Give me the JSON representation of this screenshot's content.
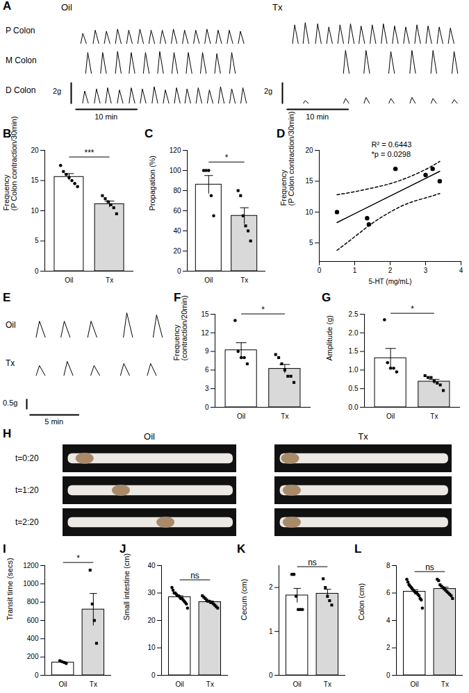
{
  "chart_data": [
    {
      "panel": "A",
      "type": "trace",
      "color": "#000000",
      "tick_labels": false,
      "rows": [
        "P Colon",
        "M Colon",
        "D Colon"
      ],
      "xlim": [
        0,
        28
      ],
      "ylim": [
        0,
        2.4
      ],
      "scale_bars": [
        {
          "axis": "y",
          "value": 2,
          "label": "2g"
        },
        {
          "axis": "x",
          "value": 10,
          "label": "10 min"
        }
      ],
      "groups": [
        {
          "name": "Oil",
          "series": [
            {
              "x": [
                1.2,
                3.2,
                5.0,
                6.8,
                8.6,
                10.4,
                12.2,
                14.0,
                15.8,
                17.6,
                19.4,
                21.2,
                23.0,
                24.8,
                26.6
              ],
              "values": [
                1.0,
                1.3,
                1.2,
                1.4,
                1.3,
                1.4,
                1.3,
                1.3,
                1.4,
                1.3,
                1.3,
                1.4,
                1.3,
                1.3,
                1.2
              ]
            },
            {
              "x": [
                2.0,
                4.4,
                6.8,
                9.0,
                11.3,
                13.6,
                15.9,
                18.2,
                20.5,
                22.8,
                25.2
              ],
              "values": [
                2.0,
                2.0,
                2.1,
                2.0,
                2.0,
                2.1,
                2.0,
                2.0,
                2.0,
                1.9,
                2.0
              ]
            },
            {
              "x": [
                1.5,
                3.4,
                5.2,
                7.1,
                9.0,
                10.8,
                12.7,
                14.5,
                16.3,
                18.0,
                19.8,
                21.6,
                23.4,
                25.2,
                27.0
              ],
              "values": [
                1.2,
                1.4,
                1.5,
                1.3,
                1.5,
                1.4,
                1.6,
                1.3,
                1.5,
                1.4,
                1.5,
                1.3,
                1.6,
                1.4,
                1.5
              ]
            }
          ]
        },
        {
          "name": "Tx",
          "series": [
            {
              "x": [
                1.3,
                3.0,
                5.0,
                6.8,
                8.6,
                10.3,
                12.0,
                13.8,
                15.6,
                17.4,
                19.2,
                21.0,
                22.8,
                24.6,
                26.4
              ],
              "values": [
                1.8,
                2.0,
                1.9,
                1.6,
                1.8,
                1.9,
                1.7,
                1.8,
                1.9,
                1.7,
                1.6,
                1.8,
                1.7,
                1.6,
                1.5
              ]
            },
            {
              "x": [
                9.5,
                12.8,
                16.8,
                20.2,
                23.6,
                27.0
              ],
              "values": [
                2.2,
                2.2,
                2.1,
                2.2,
                2.2,
                2.1
              ]
            },
            {
              "x": [
                3.0,
                9.5,
                12.8,
                16.8,
                20.2,
                23.6,
                27.0
              ],
              "values": [
                0.3,
                0.5,
                0.6,
                0.5,
                0.6,
                0.5,
                0.4
              ]
            }
          ]
        }
      ]
    },
    {
      "panel": "B",
      "type": "bar",
      "ylabel": [
        "Frequency",
        "(P Colon contraction/30min)"
      ],
      "ylim": [
        0,
        20
      ],
      "yticks": [
        0,
        5,
        10,
        15,
        20
      ],
      "significance": "***",
      "series": [
        {
          "name": "Oil",
          "color": "#ffffff",
          "marker": "circle",
          "mean": 15.6,
          "error": 0.55,
          "values": [
            17.5,
            16.5,
            16,
            15.5,
            15,
            14.5,
            14
          ]
        },
        {
          "name": "Tx",
          "color": "#d9d9d9",
          "marker": "square",
          "mean": 11.1,
          "error": 0.5,
          "values": [
            12.5,
            12,
            11.5,
            11,
            10.5,
            9.5
          ]
        }
      ]
    },
    {
      "panel": "C",
      "type": "bar",
      "ylabel": [
        "Propagation (%)"
      ],
      "ylim": [
        0,
        120
      ],
      "yticks": [
        0,
        20,
        40,
        60,
        80,
        100,
        120
      ],
      "significance": "*",
      "series": [
        {
          "name": "Oil",
          "color": "#ffffff",
          "marker": "circle",
          "mean": 86,
          "error": 9,
          "values": [
            100,
            100,
            100,
            75,
            55
          ]
        },
        {
          "name": "Tx",
          "color": "#d9d9d9",
          "marker": "square",
          "mean": 55,
          "error": 8,
          "values": [
            80,
            75,
            55,
            45,
            40,
            30
          ]
        }
      ]
    },
    {
      "panel": "D",
      "type": "scatter",
      "color": "#000000",
      "xlabel": "5-HT (mg/mL)",
      "ylabel": [
        "Frequency",
        "(P Colon contraction/30min)"
      ],
      "xlim": [
        0,
        4
      ],
      "xticks": [
        0,
        1,
        2,
        3,
        4
      ],
      "ylim": [
        2,
        20
      ],
      "yticks": [
        5,
        10,
        15,
        20
      ],
      "x": [
        0.5,
        1.35,
        1.4,
        2.15,
        3.0,
        3.2,
        3.4
      ],
      "values": [
        10,
        9,
        8,
        17,
        16,
        17,
        15
      ],
      "fit": {
        "x": [
          0.5,
          3.4
        ],
        "values": [
          8.3,
          16.6
        ]
      },
      "ci_upper": {
        "x": [
          0.5,
          1.0,
          1.5,
          2.0,
          2.5,
          3.0,
          3.4
        ],
        "values": [
          12.8,
          13.3,
          13.9,
          14.6,
          15.6,
          16.9,
          18.2
        ]
      },
      "ci_lower": {
        "x": [
          0.5,
          1.0,
          1.5,
          2.0,
          2.5,
          3.0,
          3.4
        ],
        "values": [
          3.8,
          6.0,
          8.2,
          10.0,
          11.4,
          12.3,
          13.0
        ]
      },
      "annotations": [
        "R² = 0.6443",
        "*p = 0.0298"
      ]
    },
    {
      "panel": "E",
      "type": "trace",
      "color": "#000000",
      "tick_labels": false,
      "rows": [
        "Oil",
        "Tx"
      ],
      "xlim": [
        0,
        14
      ],
      "ylim": [
        0,
        1.4
      ],
      "scale_bars": [
        {
          "axis": "y",
          "value": 0.5,
          "label": "0.5g"
        },
        {
          "axis": "x",
          "value": 5,
          "label": "5 min"
        }
      ],
      "series": [
        {
          "x": [
            1.0,
            3.5,
            6.2,
            9.8,
            12.8
          ],
          "values": [
            0.8,
            0.8,
            0.8,
            1.2,
            1.1
          ]
        },
        {
          "x": [
            1.0,
            3.8,
            6.5,
            9.5,
            12.2
          ],
          "values": [
            0.5,
            0.7,
            0.5,
            0.6,
            0.6
          ]
        }
      ]
    },
    {
      "panel": "F",
      "type": "bar",
      "ylabel": [
        "Frequency",
        "(contraction/20min)"
      ],
      "ylim": [
        0,
        15
      ],
      "yticks": [
        0,
        3,
        6,
        9,
        12,
        15
      ],
      "significance": "*",
      "series": [
        {
          "name": "Oil",
          "color": "#ffffff",
          "marker": "circle",
          "mean": 9.2,
          "error": 1.2,
          "values": [
            14,
            9,
            8,
            8,
            7
          ]
        },
        {
          "name": "Tx",
          "color": "#d9d9d9",
          "marker": "square",
          "mean": 6.2,
          "error": 0.7,
          "values": [
            8.5,
            8,
            7,
            6,
            5,
            5,
            4
          ]
        }
      ]
    },
    {
      "panel": "G",
      "type": "bar",
      "ylabel": [
        "Amplitude (g)"
      ],
      "ylim": [
        0,
        2.5
      ],
      "yticks": [
        {
          "value": 0,
          "label": "0.0"
        },
        {
          "value": 0.5,
          "label": "0.5"
        },
        {
          "value": 1,
          "label": "1.0"
        },
        {
          "value": 1.5,
          "label": "1.5"
        },
        {
          "value": 2,
          "label": "2.0"
        },
        {
          "value": 2.5,
          "label": "2.5"
        }
      ],
      "significance": "*",
      "series": [
        {
          "name": "Oil",
          "color": "#ffffff",
          "marker": "circle",
          "mean": 1.32,
          "error": 0.26,
          "values": [
            2.35,
            1.2,
            1.05,
            1.05,
            0.95
          ]
        },
        {
          "name": "Tx",
          "color": "#d9d9d9",
          "marker": "square",
          "mean": 0.69,
          "error": 0.06,
          "values": [
            0.85,
            0.8,
            0.8,
            0.7,
            0.65,
            0.6,
            0.45
          ]
        }
      ]
    },
    {
      "panel": "H",
      "type": "image",
      "columns": [
        "Oil",
        "Tx"
      ],
      "rows": [
        "t=0:20",
        "t=1:20",
        "t=2:20"
      ],
      "pellet_position": [
        [
          0.06,
          0.02
        ],
        [
          0.28,
          0.03
        ],
        [
          0.55,
          0.03
        ]
      ]
    },
    {
      "panel": "I",
      "type": "bar",
      "ylabel": [
        "Transit time (secs)"
      ],
      "ylim": [
        0,
        1200
      ],
      "yticks": [
        0,
        200,
        400,
        600,
        800,
        1000,
        1200
      ],
      "significance": "*",
      "series": [
        {
          "name": "Oil",
          "color": "#ffffff",
          "marker": "circle",
          "mean": 140,
          "error": 7,
          "values": [
            160,
            150,
            140,
            130
          ]
        },
        {
          "name": "Tx",
          "color": "#d9d9d9",
          "marker": "square",
          "mean": 720,
          "error": 175,
          "values": [
            1150,
            780,
            600,
            350
          ]
        }
      ]
    },
    {
      "panel": "J",
      "type": "bar",
      "ylabel": [
        "Small intestine (cm)"
      ],
      "ylim": [
        0,
        40
      ],
      "yticks": [
        0,
        10,
        20,
        30,
        40
      ],
      "significance": "ns",
      "series": [
        {
          "name": "Oil",
          "color": "#ffffff",
          "marker": "circle",
          "mean": 28.5,
          "error": 0.5,
          "values": [
            32,
            31,
            30,
            30,
            29.5,
            29,
            29,
            28.5,
            28,
            28,
            27.5,
            27,
            26.5,
            26,
            24.5
          ]
        },
        {
          "name": "Tx",
          "color": "#d9d9d9",
          "marker": "square",
          "mean": 26.7,
          "error": 0.4,
          "values": [
            29,
            28.5,
            28,
            27.5,
            27,
            27,
            26.5,
            26.5,
            26,
            25.5,
            25,
            24.5
          ]
        }
      ]
    },
    {
      "panel": "K",
      "type": "bar",
      "ylabel": [
        "Cecum (cm)"
      ],
      "ylim": [
        0,
        2.5
      ],
      "yticks": [
        0,
        1,
        2
      ],
      "significance": "ns",
      "series": [
        {
          "name": "Oil",
          "color": "#ffffff",
          "marker": "circle",
          "mean": 1.82,
          "error": 0.16,
          "values": [
            2.3,
            2.3,
            1.8,
            1.5,
            1.5,
            1.5
          ]
        },
        {
          "name": "Tx",
          "color": "#d9d9d9",
          "marker": "square",
          "mean": 1.86,
          "error": 0.1,
          "values": [
            2.2,
            2.0,
            1.8,
            1.7,
            1.6
          ]
        }
      ]
    },
    {
      "panel": "L",
      "type": "bar",
      "ylabel": [
        "Colon (cm)"
      ],
      "ylim": [
        0,
        8
      ],
      "yticks": [
        0,
        2,
        4,
        6,
        8
      ],
      "significance": "ns",
      "series": [
        {
          "name": "Oil",
          "color": "#ffffff",
          "marker": "circle",
          "mean": 6.1,
          "error": 0.13,
          "values": [
            7.0,
            6.8,
            6.6,
            6.5,
            6.4,
            6.3,
            6.2,
            6.1,
            6.0,
            6.0,
            5.9,
            5.8,
            5.6,
            5.5,
            4.9
          ]
        },
        {
          "name": "Tx",
          "color": "#d9d9d9",
          "marker": "square",
          "mean": 6.3,
          "error": 0.13,
          "values": [
            7.0,
            6.9,
            6.6,
            6.5,
            6.4,
            6.3,
            6.2,
            6.1,
            6.0,
            5.9,
            5.8,
            5.6
          ]
        }
      ]
    }
  ]
}
